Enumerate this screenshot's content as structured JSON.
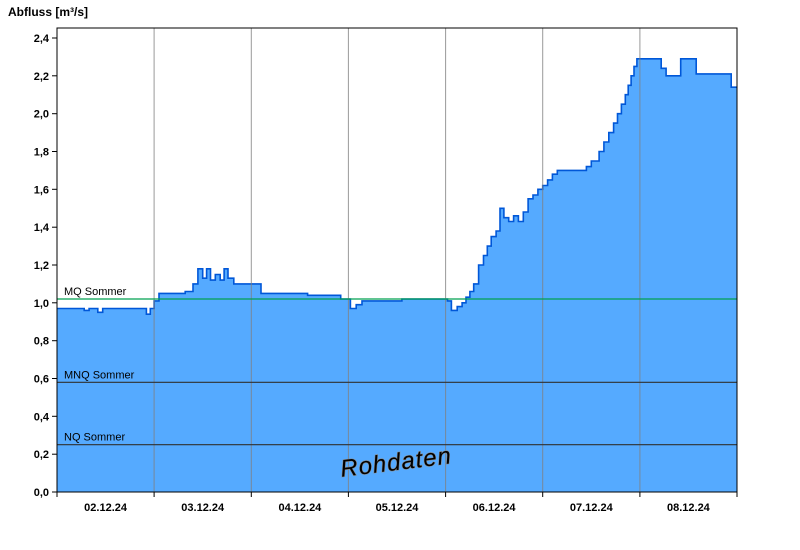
{
  "title": "Abfluss [m³/s]",
  "chart_data": {
    "type": "area",
    "title": "Abfluss [m³/s]",
    "ylabel": "Abfluss [m³/s]",
    "xlabel": "",
    "ylim": [
      0.0,
      2.4
    ],
    "ytick_labels": [
      "0,0",
      "0,2",
      "0,4",
      "0,6",
      "0,8",
      "1,0",
      "1,2",
      "1,4",
      "1,6",
      "1,8",
      "2,0",
      "2,2",
      "2,4"
    ],
    "x_day_labels": [
      "02.12.24",
      "03.12.24",
      "04.12.24",
      "05.12.24",
      "06.12.24",
      "07.12.24",
      "08.12.24"
    ],
    "grid": "vertical-day-lines",
    "watermark": "Rohdaten",
    "series": [
      {
        "name": "Rohdaten",
        "unit": "m³/s",
        "points": [
          [
            0.0,
            0.97
          ],
          [
            0.28,
            0.96
          ],
          [
            0.33,
            0.97
          ],
          [
            0.42,
            0.95
          ],
          [
            0.47,
            0.97
          ],
          [
            0.92,
            0.94
          ],
          [
            0.96,
            0.97
          ],
          [
            1.0,
            1.01
          ],
          [
            1.05,
            1.05
          ],
          [
            1.32,
            1.06
          ],
          [
            1.4,
            1.1
          ],
          [
            1.45,
            1.18
          ],
          [
            1.5,
            1.13
          ],
          [
            1.54,
            1.18
          ],
          [
            1.58,
            1.12
          ],
          [
            1.63,
            1.15
          ],
          [
            1.68,
            1.12
          ],
          [
            1.72,
            1.18
          ],
          [
            1.76,
            1.13
          ],
          [
            1.82,
            1.1
          ],
          [
            2.1,
            1.05
          ],
          [
            2.58,
            1.04
          ],
          [
            2.92,
            1.02
          ],
          [
            3.02,
            0.97
          ],
          [
            3.08,
            0.99
          ],
          [
            3.14,
            1.01
          ],
          [
            3.55,
            1.02
          ],
          [
            4.02,
            1.01
          ],
          [
            4.06,
            0.96
          ],
          [
            4.12,
            0.98
          ],
          [
            4.17,
            1.0
          ],
          [
            4.21,
            1.03
          ],
          [
            4.25,
            1.06
          ],
          [
            4.29,
            1.1
          ],
          [
            4.34,
            1.2
          ],
          [
            4.39,
            1.25
          ],
          [
            4.43,
            1.3
          ],
          [
            4.47,
            1.35
          ],
          [
            4.52,
            1.38
          ],
          [
            4.56,
            1.5
          ],
          [
            4.6,
            1.45
          ],
          [
            4.65,
            1.43
          ],
          [
            4.7,
            1.46
          ],
          [
            4.75,
            1.43
          ],
          [
            4.8,
            1.48
          ],
          [
            4.85,
            1.55
          ],
          [
            4.9,
            1.57
          ],
          [
            4.95,
            1.6
          ],
          [
            5.0,
            1.62
          ],
          [
            5.05,
            1.65
          ],
          [
            5.1,
            1.68
          ],
          [
            5.15,
            1.7
          ],
          [
            5.45,
            1.72
          ],
          [
            5.5,
            1.75
          ],
          [
            5.58,
            1.8
          ],
          [
            5.63,
            1.85
          ],
          [
            5.68,
            1.9
          ],
          [
            5.73,
            1.95
          ],
          [
            5.77,
            2.0
          ],
          [
            5.81,
            2.05
          ],
          [
            5.85,
            2.1
          ],
          [
            5.88,
            2.15
          ],
          [
            5.91,
            2.2
          ],
          [
            5.94,
            2.25
          ],
          [
            5.97,
            2.29
          ],
          [
            6.22,
            2.24
          ],
          [
            6.27,
            2.2
          ],
          [
            6.42,
            2.29
          ],
          [
            6.55,
            2.29
          ],
          [
            6.58,
            2.21
          ],
          [
            6.9,
            2.21
          ],
          [
            6.94,
            2.14
          ],
          [
            7.0,
            2.14
          ]
        ]
      }
    ],
    "reference_lines": [
      {
        "label": "MQ Sommer",
        "value": 1.02,
        "color": "#00a050"
      },
      {
        "label": "MNQ Sommer",
        "value": 0.58,
        "color": "#303030"
      },
      {
        "label": "NQ Sommer",
        "value": 0.25,
        "color": "#303030"
      }
    ],
    "colors": {
      "area_fill": "#55aaff",
      "area_stroke": "#0057d8",
      "grid_line": "#808080",
      "frame": "#000000",
      "watermark_fill": "#ffffff",
      "watermark_outline": "#8a8a8a"
    }
  }
}
